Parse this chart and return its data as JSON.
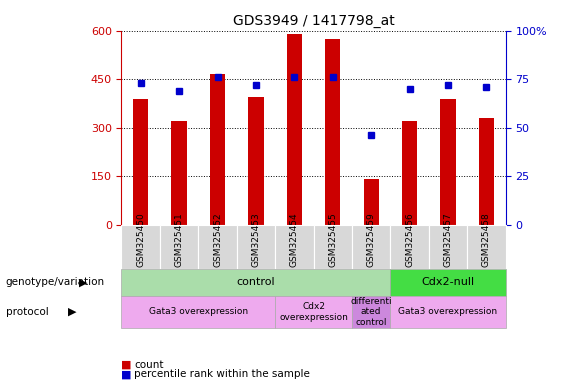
{
  "title": "GDS3949 / 1417798_at",
  "samples": [
    "GSM325450",
    "GSM325451",
    "GSM325452",
    "GSM325453",
    "GSM325454",
    "GSM325455",
    "GSM325459",
    "GSM325456",
    "GSM325457",
    "GSM325458"
  ],
  "counts": [
    390,
    320,
    465,
    395,
    590,
    575,
    140,
    320,
    390,
    330
  ],
  "percentile_ranks": [
    73,
    69,
    76,
    72,
    76,
    76,
    46,
    70,
    72,
    71
  ],
  "ylim_left": [
    0,
    600
  ],
  "ylim_right": [
    0,
    100
  ],
  "yticks_left": [
    0,
    150,
    300,
    450,
    600
  ],
  "yticks_right": [
    0,
    25,
    50,
    75,
    100
  ],
  "bar_color": "#cc0000",
  "dot_color": "#0000cc",
  "title_fontsize": 10,
  "axis_color_left": "#cc0000",
  "axis_color_right": "#0000cc",
  "genotype_groups": [
    {
      "label": "control",
      "start": 0,
      "end": 7,
      "color": "#aaeea a"
    },
    {
      "label": "Cdx2-null",
      "start": 7,
      "end": 10,
      "color": "#55ee55"
    }
  ],
  "protocol_groups": [
    {
      "label": "Gata3 overexpression",
      "start": 0,
      "end": 4,
      "color": "#eeaaee"
    },
    {
      "label": "Cdx2\noverexpression",
      "start": 4,
      "end": 6,
      "color": "#eeaaee"
    },
    {
      "label": "differenti\nated\ncontrol",
      "start": 6,
      "end": 7,
      "color": "#dd99ee"
    },
    {
      "label": "Gata3 overexpression",
      "start": 7,
      "end": 10,
      "color": "#eeaaee"
    }
  ],
  "left_label": "genotype/variation",
  "protocol_label": "protocol",
  "legend_count_label": "count",
  "legend_pct_label": "percentile rank within the sample",
  "bg_color": "#ffffff",
  "gray_bg": "#d8d8d8",
  "geno_color_control": "#aaddaa",
  "geno_color_cdx2": "#44dd44",
  "proto_color_gata3": "#eeaaee",
  "proto_color_cdx2oe": "#eeaaee",
  "proto_color_diff": "#cc88dd"
}
